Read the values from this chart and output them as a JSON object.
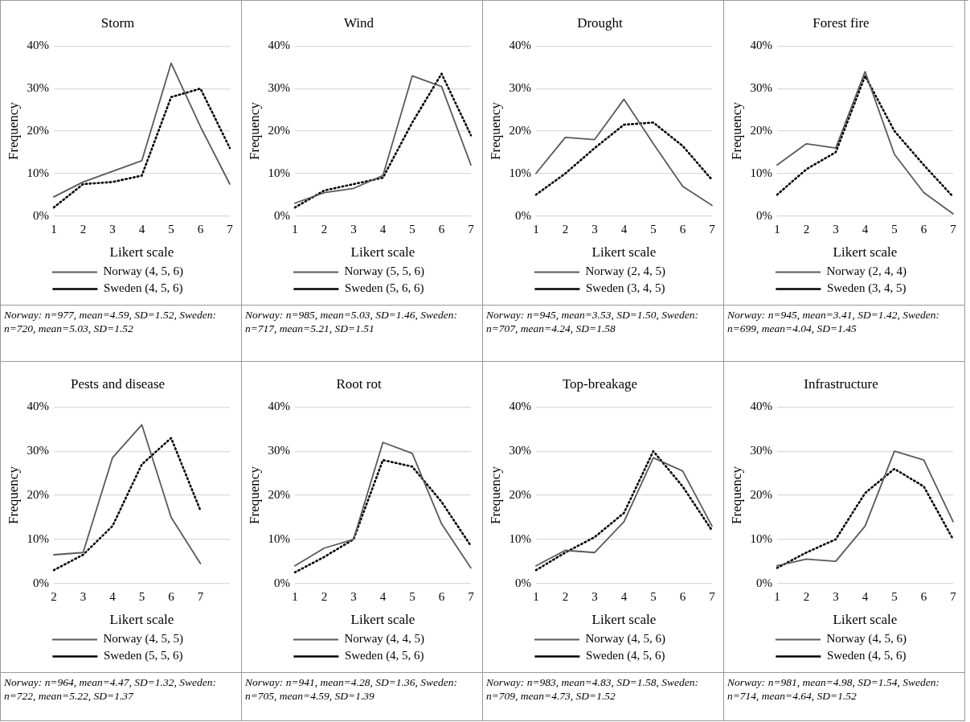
{
  "chart_data": [
    {
      "type": "line",
      "title": "Storm",
      "xlabel": "Likert scale",
      "ylabel": "Frequency",
      "categories": [
        "1",
        "2",
        "3",
        "4",
        "5",
        "6",
        "7"
      ],
      "ylim": [
        0,
        40
      ],
      "yticks": [
        {
          "value": 0,
          "label": "0%"
        },
        {
          "value": 10,
          "label": "10%"
        },
        {
          "value": 20,
          "label": "20%"
        },
        {
          "value": 30,
          "label": "30%"
        },
        {
          "value": 40,
          "label": "40%"
        }
      ],
      "grid": "y",
      "legend": "bottom",
      "marker": "none",
      "series": [
        {
          "name": "Norway (4, 5, 6)",
          "color": "#595959",
          "line_style": "solid",
          "values": [
            4.5,
            8,
            10.5,
            13,
            36,
            21,
            7.5
          ]
        },
        {
          "name": "Sweden (4, 5, 6)",
          "color": "#000000",
          "line_style": "dotted",
          "values": [
            2,
            7.5,
            8,
            9.5,
            28,
            30,
            16
          ]
        }
      ],
      "annotations": [
        "Norway: n=977, mean=4.59, SD=1.52, Sweden: n=720, mean=5.03, SD=1.52"
      ]
    },
    {
      "type": "line",
      "title": "Wind",
      "xlabel": "Likert scale",
      "ylabel": "Frequency",
      "categories": [
        "1",
        "2",
        "3",
        "4",
        "5",
        "6",
        "7"
      ],
      "ylim": [
        0,
        40
      ],
      "yticks": [
        {
          "value": 0,
          "label": "0%"
        },
        {
          "value": 10,
          "label": "10%"
        },
        {
          "value": 20,
          "label": "20%"
        },
        {
          "value": 30,
          "label": "30%"
        },
        {
          "value": 40,
          "label": "40%"
        }
      ],
      "grid": "y",
      "legend": "bottom",
      "marker": "none",
      "series": [
        {
          "name": "Norway (5, 5, 6)",
          "color": "#595959",
          "line_style": "solid",
          "values": [
            3,
            5.5,
            6.5,
            9.5,
            33,
            30.5,
            12
          ]
        },
        {
          "name": "Sweden (5, 6, 6)",
          "color": "#000000",
          "line_style": "dotted",
          "values": [
            2,
            6,
            7.5,
            9,
            22,
            33.5,
            19
          ]
        }
      ],
      "annotations": [
        "Norway: n=985, mean=5.03, SD=1.46, Sweden: n=717, mean=5.21, SD=1.51"
      ]
    },
    {
      "type": "line",
      "title": "Drought",
      "xlabel": "Likert scale",
      "ylabel": "Frequency",
      "categories": [
        "1",
        "2",
        "3",
        "4",
        "5",
        "6",
        "7"
      ],
      "ylim": [
        0,
        40
      ],
      "yticks": [
        {
          "value": 0,
          "label": "0%"
        },
        {
          "value": 10,
          "label": "10%"
        },
        {
          "value": 20,
          "label": "20%"
        },
        {
          "value": 30,
          "label": "30%"
        },
        {
          "value": 40,
          "label": "40%"
        }
      ],
      "grid": "y",
      "legend": "bottom",
      "marker": "none",
      "series": [
        {
          "name": "Norway (2, 4, 5)",
          "color": "#595959",
          "line_style": "solid",
          "values": [
            10,
            18.5,
            18,
            27.5,
            17,
            7,
            2.5
          ]
        },
        {
          "name": "Sweden (3, 4, 5)",
          "color": "#000000",
          "line_style": "dotted",
          "values": [
            5,
            10,
            16,
            21.5,
            22,
            16.5,
            8.5
          ]
        }
      ],
      "annotations": [
        "Norway: n=945, mean=3.53, SD=1.50, Sweden: n=707, mean=4.24, SD=1.58"
      ]
    },
    {
      "type": "line",
      "title": "Forest fire",
      "xlabel": "Likert scale",
      "ylabel": "Frequency",
      "categories": [
        "1",
        "2",
        "3",
        "4",
        "5",
        "6",
        "7"
      ],
      "ylim": [
        0,
        40
      ],
      "yticks": [
        {
          "value": 0,
          "label": "0%"
        },
        {
          "value": 10,
          "label": "10%"
        },
        {
          "value": 20,
          "label": "20%"
        },
        {
          "value": 30,
          "label": "30%"
        },
        {
          "value": 40,
          "label": "40%"
        }
      ],
      "grid": "y",
      "legend": "bottom",
      "marker": "none",
      "series": [
        {
          "name": "Norway (2, 4, 4)",
          "color": "#595959",
          "line_style": "solid",
          "values": [
            12,
            17,
            16,
            34,
            14.5,
            5.5,
            0.5
          ]
        },
        {
          "name": "Sweden (3, 4, 5)",
          "color": "#000000",
          "line_style": "dotted",
          "values": [
            5,
            11,
            15,
            33,
            20,
            12,
            4.5
          ]
        }
      ],
      "annotations": [
        "Norway: n=945, mean=3.41, SD=1.42, Sweden: n=699, mean=4.04, SD=1.45"
      ]
    },
    {
      "type": "line",
      "title": "Pests and disease",
      "xlabel": "Likert scale",
      "ylabel": "Frequency",
      "categories": [
        "2",
        "3",
        "4",
        "5",
        "6",
        "7",
        null
      ],
      "ylim": [
        0,
        40
      ],
      "yticks": [
        {
          "value": 0,
          "label": "0%"
        },
        {
          "value": 10,
          "label": "10%"
        },
        {
          "value": 20,
          "label": "20%"
        },
        {
          "value": 30,
          "label": "30%"
        },
        {
          "value": 40,
          "label": "40%"
        }
      ],
      "grid": "y",
      "legend": "bottom",
      "marker": "none",
      "series": [
        {
          "name": "Norway (4, 5, 5)",
          "color": "#595959",
          "line_style": "solid",
          "values": [
            6.5,
            7,
            28.5,
            36,
            15,
            4.5,
            null
          ]
        },
        {
          "name": "Sweden (5, 5, 6)",
          "color": "#000000",
          "line_style": "dotted",
          "values": [
            3,
            6.5,
            13,
            27,
            33,
            16.5,
            null
          ]
        }
      ],
      "annotations": [
        "Norway: n=964, mean=4.47, SD=1.32, Sweden: n=722, mean=5.22, SD=1.37"
      ]
    },
    {
      "type": "line",
      "title": "Root rot",
      "xlabel": "Likert scale",
      "ylabel": "Frequency",
      "categories": [
        "1",
        "2",
        "3",
        "4",
        "5",
        "6",
        "7"
      ],
      "ylim": [
        0,
        40
      ],
      "yticks": [
        {
          "value": 0,
          "label": "0%"
        },
        {
          "value": 10,
          "label": "10%"
        },
        {
          "value": 20,
          "label": "20%"
        },
        {
          "value": 30,
          "label": "30%"
        },
        {
          "value": 40,
          "label": "40%"
        }
      ],
      "grid": "y",
      "legend": "bottom",
      "marker": "none",
      "series": [
        {
          "name": "Norway (4, 4, 5)",
          "color": "#595959",
          "line_style": "solid",
          "values": [
            4,
            8,
            10,
            32,
            29.5,
            13.5,
            3.5
          ]
        },
        {
          "name": "Sweden (4, 5, 6)",
          "color": "#000000",
          "line_style": "dotted",
          "values": [
            2.5,
            6,
            10,
            28,
            26.5,
            18.5,
            8.5
          ]
        }
      ],
      "annotations": [
        "Norway: n=941, mean=4.28, SD=1.36, Sweden: n=705, mean=4.59, SD=1.39"
      ]
    },
    {
      "type": "line",
      "title": "Top-breakage",
      "xlabel": "Likert scale",
      "ylabel": "Frequency",
      "categories": [
        "1",
        "2",
        "3",
        "4",
        "5",
        "6",
        "7"
      ],
      "ylim": [
        0,
        40
      ],
      "yticks": [
        {
          "value": 0,
          "label": "0%"
        },
        {
          "value": 10,
          "label": "10%"
        },
        {
          "value": 20,
          "label": "20%"
        },
        {
          "value": 30,
          "label": "30%"
        },
        {
          "value": 40,
          "label": "40%"
        }
      ],
      "grid": "y",
      "legend": "bottom",
      "marker": "none",
      "series": [
        {
          "name": "Norway (4, 5, 6)",
          "color": "#595959",
          "line_style": "solid",
          "values": [
            4,
            7.5,
            7,
            14,
            28.5,
            25.5,
            13
          ]
        },
        {
          "name": "Sweden (4, 5, 6)",
          "color": "#000000",
          "line_style": "dotted",
          "values": [
            3,
            7,
            10.5,
            16,
            30,
            22,
            12
          ]
        }
      ],
      "annotations": [
        "Norway: n=983, mean=4.83, SD=1.58, Sweden: n=709, mean=4.73, SD=1.52"
      ]
    },
    {
      "type": "line",
      "title": "Infrastructure",
      "xlabel": "Likert scale",
      "ylabel": "Frequency",
      "categories": [
        "1",
        "2",
        "3",
        "4",
        "5",
        "6",
        "7"
      ],
      "ylim": [
        0,
        40
      ],
      "yticks": [
        {
          "value": 0,
          "label": "0%"
        },
        {
          "value": 10,
          "label": "10%"
        },
        {
          "value": 20,
          "label": "20%"
        },
        {
          "value": 30,
          "label": "30%"
        },
        {
          "value": 40,
          "label": "40%"
        }
      ],
      "grid": "y",
      "legend": "bottom",
      "marker": "none",
      "series": [
        {
          "name": "Norway (4, 5, 6)",
          "color": "#595959",
          "line_style": "solid",
          "values": [
            4,
            5.5,
            5,
            13,
            30,
            28,
            14
          ]
        },
        {
          "name": "Sweden (4, 5, 6)",
          "color": "#000000",
          "line_style": "dotted",
          "values": [
            3.5,
            7,
            10,
            20.5,
            26,
            22,
            10
          ]
        }
      ],
      "annotations": [
        "Norway: n=981, mean=4.98, SD=1.54, Sweden: n=714, mean=4.64, SD=1.52"
      ]
    }
  ]
}
